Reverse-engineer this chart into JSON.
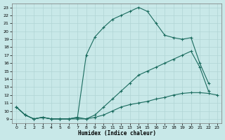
{
  "xlabel": "Humidex (Indice chaleur)",
  "xlim": [
    -0.5,
    23.5
  ],
  "ylim": [
    8.5,
    23.5
  ],
  "yticks": [
    9,
    10,
    11,
    12,
    13,
    14,
    15,
    16,
    17,
    18,
    19,
    20,
    21,
    22,
    23
  ],
  "xticks": [
    0,
    1,
    2,
    3,
    4,
    5,
    6,
    7,
    8,
    9,
    10,
    11,
    12,
    13,
    14,
    15,
    16,
    17,
    18,
    19,
    20,
    21,
    22,
    23
  ],
  "bg_color": "#c8e8e8",
  "line_color": "#1a6b5e",
  "grid_color": "#b0d4d4",
  "lines": [
    {
      "x": [
        0,
        1,
        2,
        3,
        4,
        5,
        6,
        7,
        8,
        9,
        10,
        11,
        12,
        13,
        14,
        15,
        16,
        17,
        18,
        19,
        20,
        21,
        22
      ],
      "y": [
        10.5,
        9.5,
        9.0,
        9.2,
        9.0,
        9.0,
        9.0,
        9.2,
        17.0,
        19.3,
        20.5,
        21.5,
        22.0,
        22.5,
        23.0,
        22.5,
        21.0,
        19.5,
        19.2,
        19.0,
        19.2,
        16.0,
        13.5
      ]
    },
    {
      "x": [
        0,
        1,
        2,
        3,
        4,
        5,
        6,
        7,
        8,
        9,
        10,
        11,
        12,
        13,
        14,
        15,
        16,
        17,
        18,
        19,
        20,
        21,
        22
      ],
      "y": [
        10.5,
        9.5,
        9.0,
        9.2,
        9.0,
        9.0,
        9.0,
        9.2,
        9.0,
        9.5,
        10.5,
        11.5,
        12.5,
        13.5,
        14.5,
        15.0,
        15.5,
        16.0,
        16.5,
        17.0,
        17.5,
        15.5,
        12.5
      ]
    },
    {
      "x": [
        0,
        1,
        2,
        3,
        4,
        5,
        6,
        7,
        8,
        9,
        10,
        11,
        12,
        13,
        14,
        15,
        16,
        17,
        18,
        19,
        20,
        21,
        22,
        23
      ],
      "y": [
        10.5,
        9.5,
        9.0,
        9.2,
        9.0,
        9.0,
        9.0,
        9.0,
        9.0,
        9.2,
        9.5,
        10.0,
        10.5,
        10.8,
        11.0,
        11.2,
        11.5,
        11.7,
        12.0,
        12.2,
        12.3,
        12.3,
        12.2,
        12.0
      ]
    }
  ]
}
